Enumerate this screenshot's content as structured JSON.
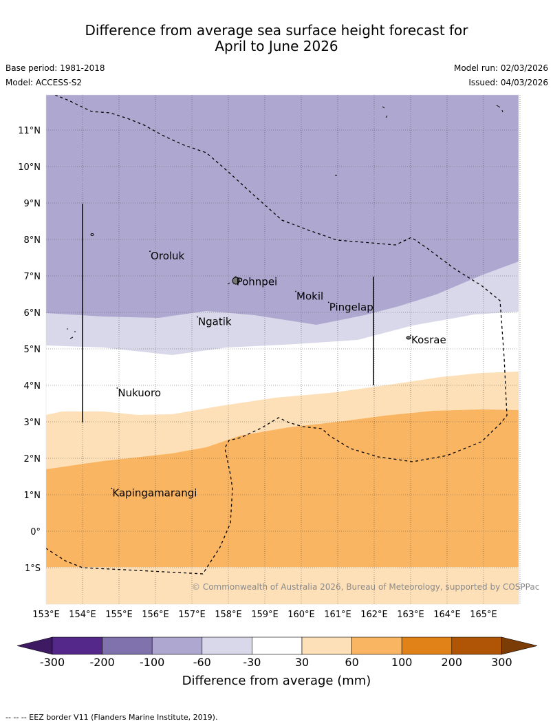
{
  "title_line1": "Difference from average sea surface height forecast for",
  "title_line2": "April to June 2026",
  "base_period": "Base period: 1981-2018",
  "model": "Model: ACCESS-S2",
  "model_run": "Model run: 02/03/2026",
  "issued": "Issued: 04/03/2026",
  "lat_labels": [
    "11°N",
    "10°N",
    "9°N",
    "8°N",
    "7°N",
    "6°N",
    "5°N",
    "4°N",
    "3°N",
    "2°N",
    "1°N",
    "0°",
    "1°S"
  ],
  "lon_labels": [
    "153°E",
    "154°E",
    "155°E",
    "156°E",
    "157°E",
    "158°E",
    "159°E",
    "160°E",
    "161°E",
    "162°E",
    "163°E",
    "164°E",
    "165°E"
  ],
  "places": [
    {
      "name": "Oroluk",
      "lon": 155.85,
      "lat": 7.6
    },
    {
      "name": "Pohnpei",
      "lon": 158.2,
      "lat": 6.9
    },
    {
      "name": "Mokil",
      "lon": 159.85,
      "lat": 6.5
    },
    {
      "name": "Pingelap",
      "lon": 160.75,
      "lat": 6.2
    },
    {
      "name": "Ngatik",
      "lon": 157.15,
      "lat": 5.8
    },
    {
      "name": "Kosrae",
      "lon": 163.0,
      "lat": 5.3
    },
    {
      "name": "Nukuoro",
      "lon": 154.95,
      "lat": 3.85
    },
    {
      "name": "Kapingamarangi",
      "lon": 154.8,
      "lat": 1.1
    }
  ],
  "copyright": "© Commonwealth of Australia 2026, Bureau of Meteorology, supported by COSPPac",
  "colorbar": {
    "title": "Difference from average (mm)",
    "ticks": [
      "-300",
      "-200",
      "-100",
      "-60",
      "-30",
      "30",
      "60",
      "100",
      "200",
      "300"
    ],
    "colors": [
      "#3e1a63",
      "#54288a",
      "#7f72ad",
      "#aea8d0",
      "#d8d8ea",
      "#ffffff",
      "#fde0b8",
      "#fab562",
      "#e08218",
      "#b05506",
      "#7c3c06"
    ]
  },
  "footnote": "-- -- -- EEZ border V11 (Flanders Marine Institute, 2019).",
  "chart_data": {
    "type": "filled-contour map",
    "title": "Difference from average sea surface height forecast for April to June 2026",
    "units": "mm",
    "lon_range": [
      153,
      166
    ],
    "lat_range": [
      -2,
      12
    ],
    "bands": [
      {
        "range": "-100 to -60",
        "color": "#aea8d0",
        "region": "north of ~6°N (west) to ~7.4°N (east)"
      },
      {
        "range": "-60 to -30",
        "color": "#d8d8ea",
        "region": "~5°N to ~6°N"
      },
      {
        "range": "-30 to 30",
        "color": "#ffffff",
        "region": "~3.2°N to ~5°N"
      },
      {
        "range": "30 to 60",
        "color": "#fde0b8",
        "region": "~1.7°N to ~4.4°N"
      },
      {
        "range": "60 to 100",
        "color": "#fab562",
        "region": "~-1°S to ~3.3°N"
      },
      {
        "range": "30 to 60",
        "color": "#fde0b8",
        "region": "south of ~-1°S"
      }
    ]
  }
}
